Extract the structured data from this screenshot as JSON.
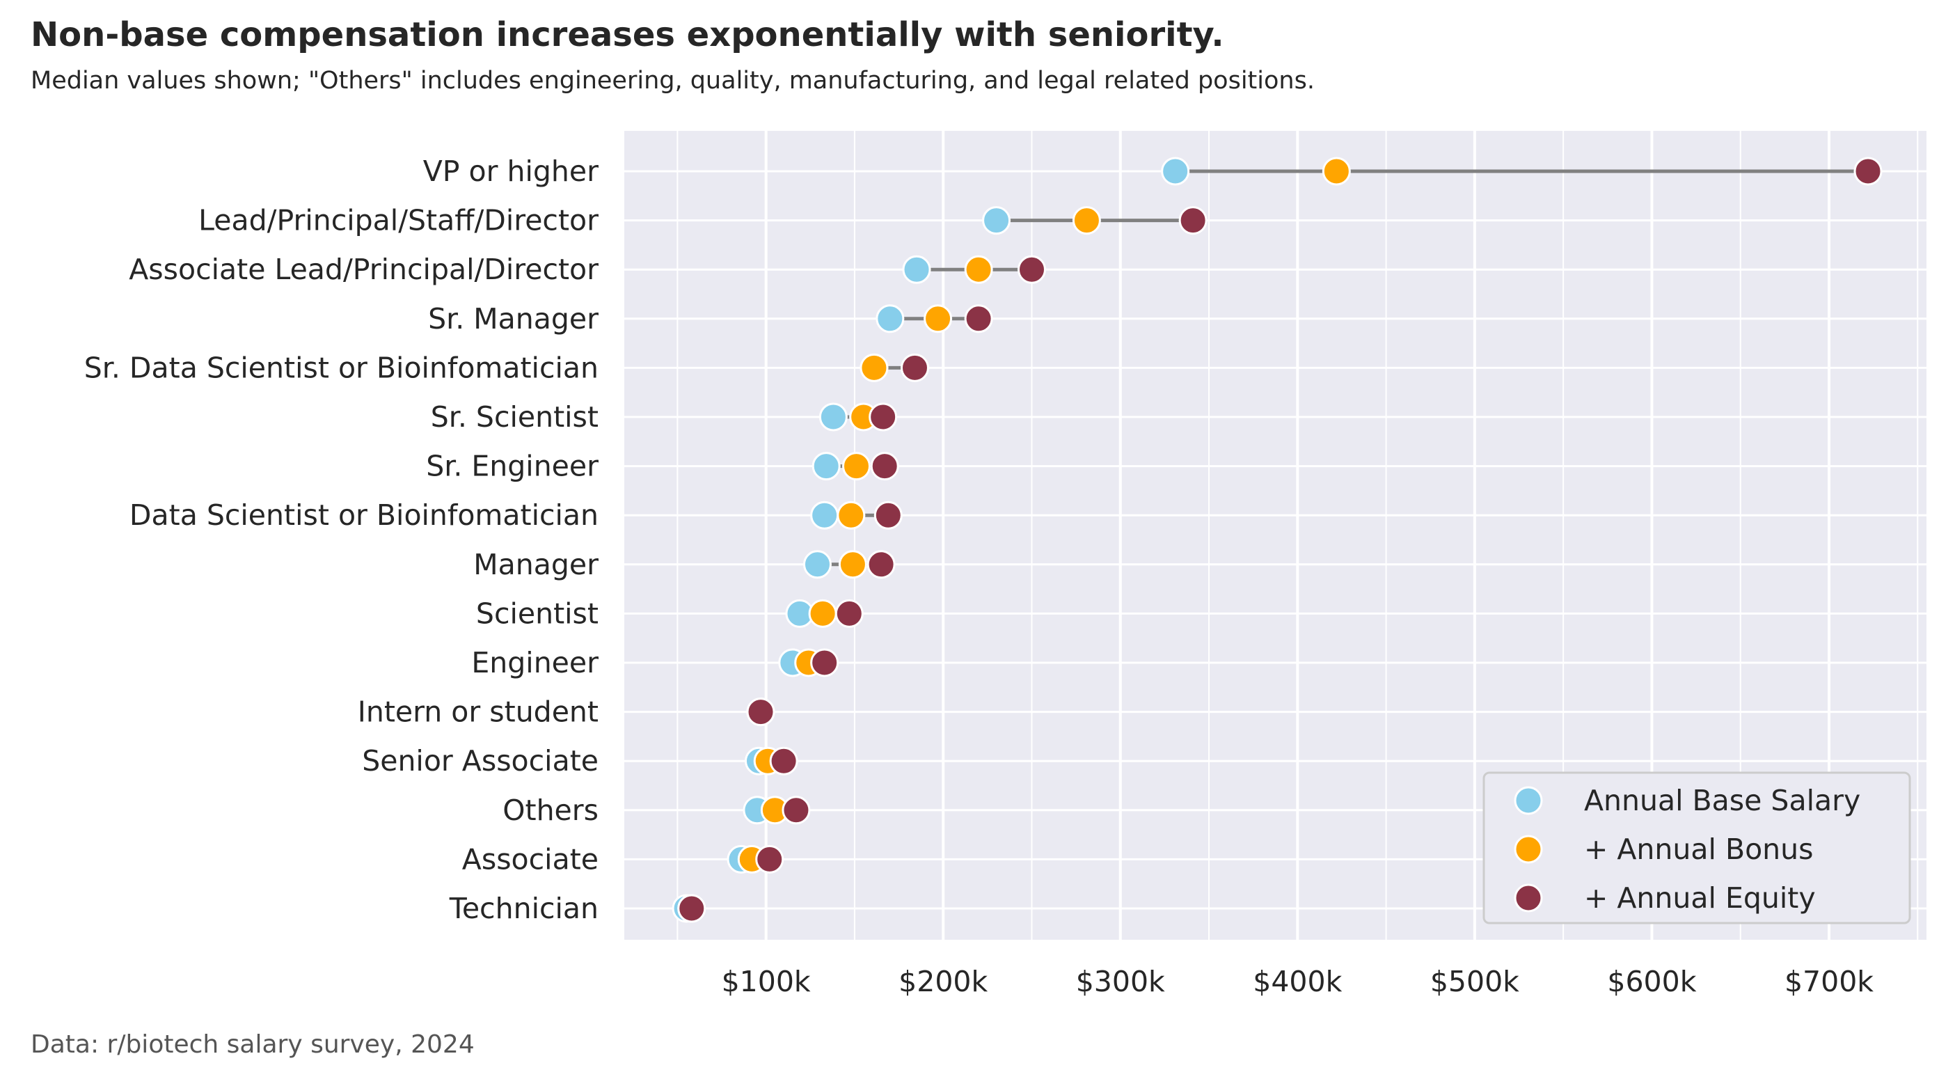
{
  "title": "Non-base compensation increases exponentially with seniority.",
  "subtitle": "Median values shown; \"Others\" includes engineering, quality, manufacturing, and legal related positions.",
  "caption": "Data: r/biotech salary survey, 2024",
  "chart_data": {
    "type": "dumbbell",
    "title": "Non-base compensation increases exponentially with seniority.",
    "xlabel": "",
    "ylabel": "",
    "xlim": [
      20000,
      755000
    ],
    "x_ticks": [
      100000,
      200000,
      300000,
      400000,
      500000,
      600000,
      700000
    ],
    "x_tick_labels": [
      "$100k",
      "$200k",
      "$300k",
      "$400k",
      "$500k",
      "$600k",
      "$700k"
    ],
    "grid": true,
    "legend_position": "lower-right",
    "categories": [
      "VP or higher",
      "Lead/Principal/Staff/Director",
      "Associate Lead/Principal/Director",
      "Sr. Manager",
      "Sr. Data Scientist or Bioinfomatician",
      "Sr. Scientist",
      "Sr. Engineer",
      "Data Scientist or Bioinfomatician",
      "Manager",
      "Scientist",
      "Engineer",
      "Intern or student",
      "Senior Associate",
      "Others",
      "Associate",
      "Technician"
    ],
    "series": [
      {
        "name": "Annual Base Salary",
        "color": "#87CEEB",
        "values": [
          331000,
          230000,
          185000,
          170000,
          161000,
          138000,
          134000,
          133000,
          129000,
          119000,
          115000,
          97000,
          96000,
          95000,
          86000,
          55000
        ]
      },
      {
        "name": "+ Annual Bonus",
        "color": "#FFA500",
        "values": [
          422000,
          281000,
          220000,
          197000,
          161000,
          155000,
          151000,
          148000,
          149000,
          132000,
          124000,
          97000,
          101000,
          105000,
          92000,
          58000
        ]
      },
      {
        "name": "+ Annual Equity",
        "color": "#8B3346",
        "values": [
          722000,
          341000,
          250000,
          220000,
          184000,
          166000,
          167000,
          169000,
          165000,
          147000,
          133000,
          97000,
          110000,
          117000,
          102000,
          58000
        ]
      }
    ]
  }
}
